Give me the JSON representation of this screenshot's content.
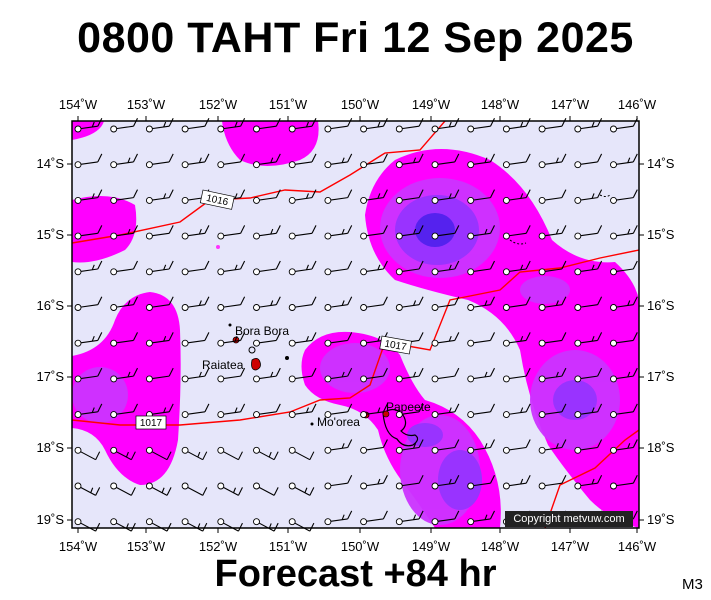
{
  "title": "0800 TAHT Fri 12 Sep 2025",
  "footer": "Forecast +84 hr",
  "code": "M3",
  "copyright": "Copyright metvuw.com",
  "axes": {
    "lon_labels": [
      "154˚W",
      "153˚W",
      "152˚W",
      "151˚W",
      "150˚W",
      "149˚W",
      "148˚W",
      "147˚W",
      "146˚W"
    ],
    "lat_labels": [
      "14˚S",
      "15˚S",
      "16˚S",
      "17˚S",
      "18˚S",
      "19˚S"
    ]
  },
  "places": [
    {
      "name": "Bora Bora"
    },
    {
      "name": "Raiatea"
    },
    {
      "name": "Mo'orea"
    },
    {
      "name": "Papeete"
    }
  ],
  "isobars": [
    {
      "label": "1016"
    },
    {
      "label": "1017"
    },
    {
      "label": "1017"
    }
  ],
  "colors": {
    "sea": "#e6e6fa",
    "precip_light": "#ff00ff",
    "precip_medium": "#cc33ff",
    "precip_heavy": "#9933ff",
    "precip_intense": "#5522ee",
    "isobar": "#ff0000",
    "land": "#cc0000"
  }
}
